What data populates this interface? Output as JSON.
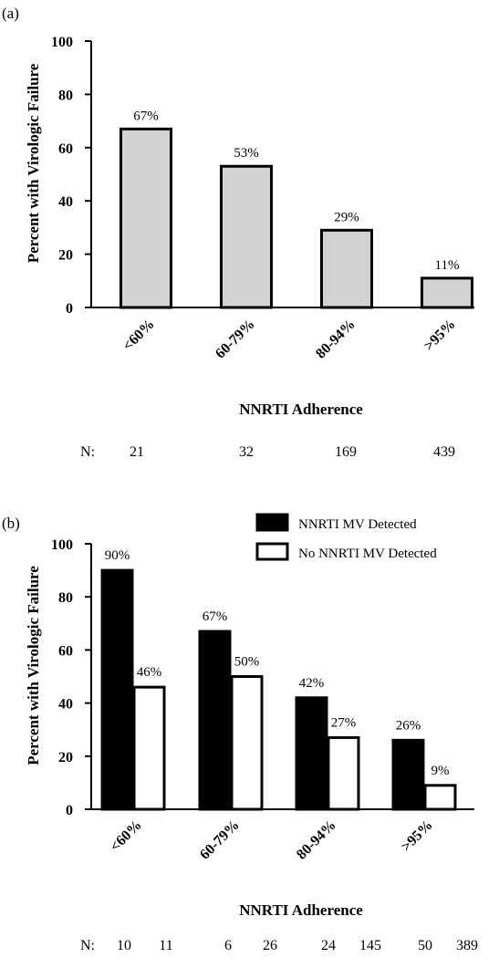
{
  "chart_data": [
    {
      "panel_label": "(a)",
      "type": "bar",
      "categories": [
        "<60%",
        "60-79%",
        "80-94%",
        ">95%"
      ],
      "values": [
        67,
        53,
        29,
        11
      ],
      "data_labels": [
        "67%",
        "53%",
        "29%",
        "11%"
      ],
      "ylabel": "Percent with Virologic Failure",
      "xlabel": "NNRTI Adherence",
      "ylim": [
        0,
        100
      ],
      "yticks": [
        0,
        20,
        40,
        60,
        80,
        100
      ],
      "bar_color": "#d3d3d3",
      "n_label": "N:",
      "n_values": [
        "21",
        "32",
        "169",
        "439"
      ]
    },
    {
      "panel_label": "(b)",
      "type": "bar",
      "categories": [
        "<60%",
        "60-79%",
        "80-94%",
        ">95%"
      ],
      "series": [
        {
          "name": "NNRTI MV Detected",
          "values": [
            90,
            67,
            42,
            26
          ],
          "data_labels": [
            "90%",
            "67%",
            "42%",
            "26%"
          ],
          "color": "#000000",
          "n_values": [
            "10",
            "6",
            "24",
            "50"
          ]
        },
        {
          "name": "No NNRTI MV Detected",
          "values": [
            46,
            50,
            27,
            9
          ],
          "data_labels": [
            "46%",
            "50%",
            "27%",
            "9%"
          ],
          "color": "#ffffff",
          "n_values": [
            "11",
            "26",
            "145",
            "389"
          ]
        }
      ],
      "ylabel": "Percent with Virologic Failure",
      "xlabel": "NNRTI Adherence",
      "ylim": [
        0,
        100
      ],
      "yticks": [
        0,
        20,
        40,
        60,
        80,
        100
      ],
      "legend_position": "top-right",
      "n_label": "N:"
    }
  ]
}
